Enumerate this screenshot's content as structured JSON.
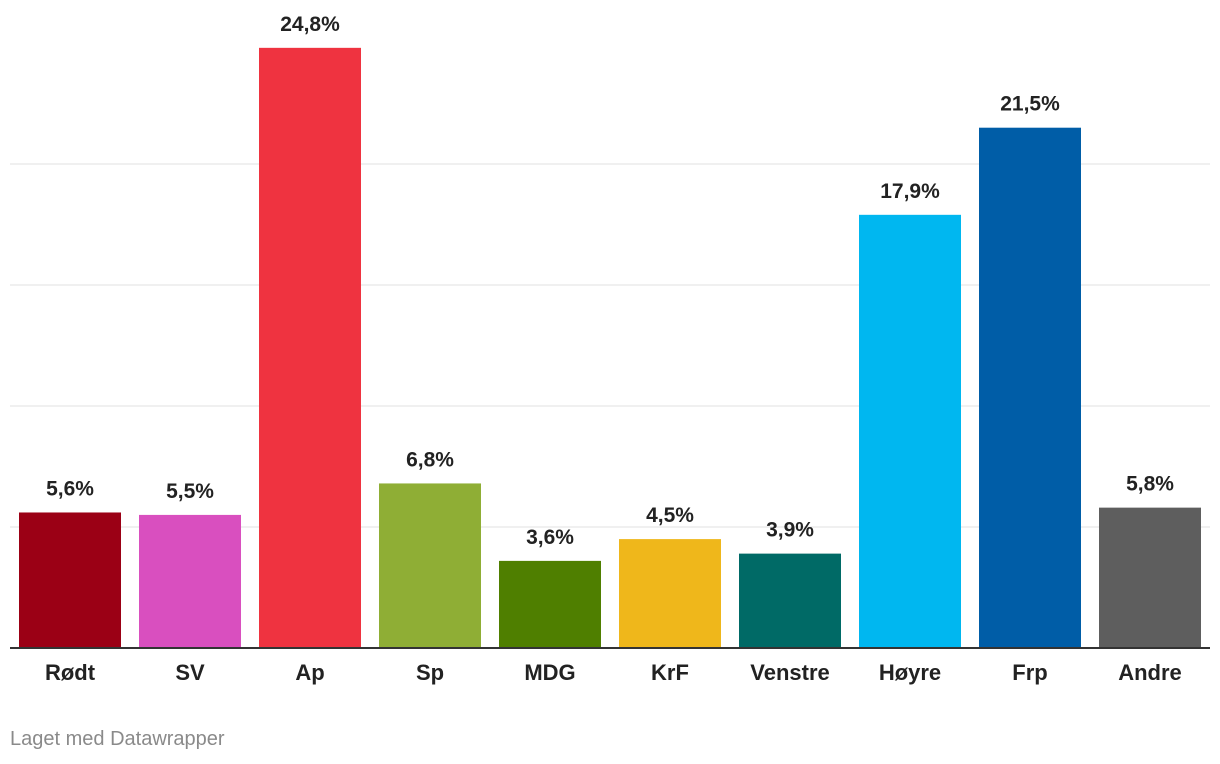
{
  "chart_data": {
    "type": "bar",
    "categories": [
      "Rødt",
      "SV",
      "Ap",
      "Sp",
      "MDG",
      "KrF",
      "Venstre",
      "Høyre",
      "Frp",
      "Andre"
    ],
    "values": [
      5.6,
      5.5,
      24.8,
      6.8,
      3.6,
      4.5,
      3.9,
      17.9,
      21.5,
      5.8
    ],
    "value_labels": [
      "5,6%",
      "5,5%",
      "24,8%",
      "6,8%",
      "3,6%",
      "4,5%",
      "3,9%",
      "17,9%",
      "21,5%",
      "5,8%"
    ],
    "colors": [
      "#9b0015",
      "#d94fbf",
      "#ef3340",
      "#8fae35",
      "#4f7f00",
      "#efb71b",
      "#006a66",
      "#00b7f0",
      "#005da7",
      "#5e5e5e"
    ],
    "ylim": [
      0,
      26
    ],
    "gridlines": [
      5,
      10,
      15,
      20
    ],
    "grid": true,
    "legend": "none"
  },
  "footer": {
    "credit": "Laget med Datawrapper"
  }
}
